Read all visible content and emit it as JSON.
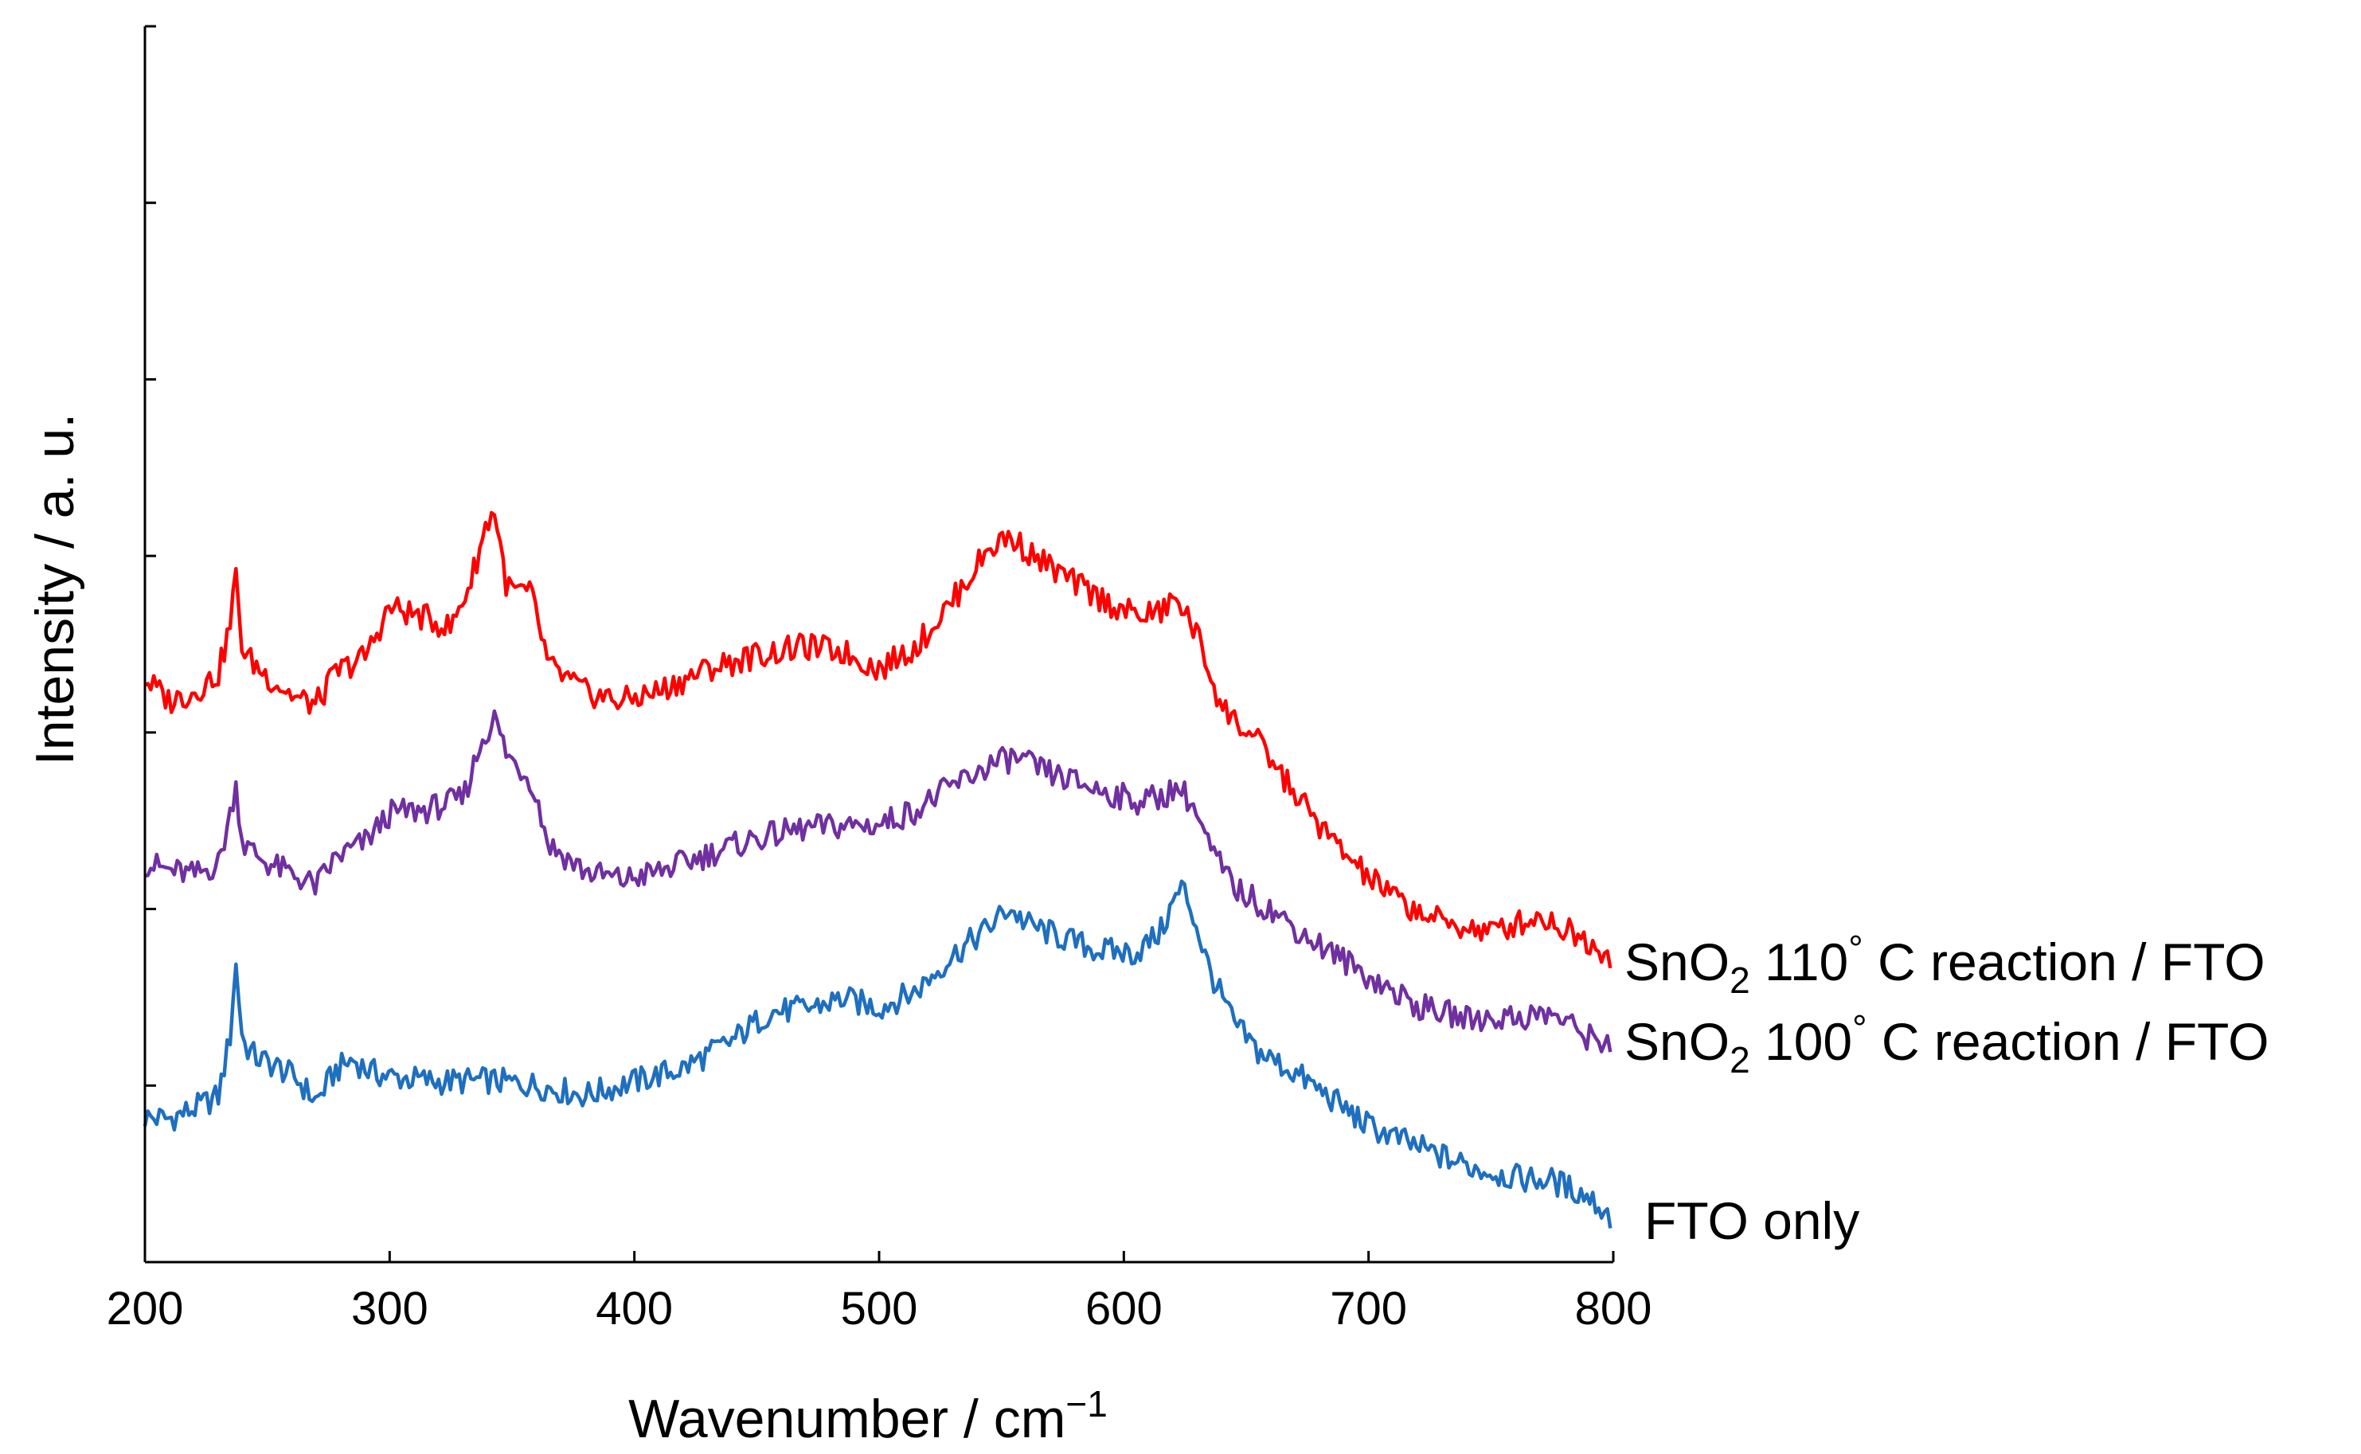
{
  "chart_data": {
    "type": "line",
    "title": "",
    "xlabel": "Wavenumber / cm",
    "xlabel_superscript": "−1",
    "ylabel": "Intensity / a. u.",
    "xlim": [
      200,
      800
    ],
    "ylim": [
      0,
      1
    ],
    "x_ticks": [
      200,
      300,
      400,
      500,
      600,
      700,
      800
    ],
    "y_tick_count": 7,
    "series": [
      {
        "name": "FTO only",
        "label_parts": {
          "main": "FTO only"
        },
        "color": "#1f6fbf",
        "points": [
          [
            200,
            0.117
          ],
          [
            210,
            0.116
          ],
          [
            220,
            0.124
          ],
          [
            230,
            0.134
          ],
          [
            235,
            0.185
          ],
          [
            237,
            0.244
          ],
          [
            240,
            0.178
          ],
          [
            245,
            0.166
          ],
          [
            255,
            0.157
          ],
          [
            262,
            0.148
          ],
          [
            270,
            0.13
          ],
          [
            278,
            0.155
          ],
          [
            285,
            0.164
          ],
          [
            292,
            0.154
          ],
          [
            300,
            0.15
          ],
          [
            320,
            0.146
          ],
          [
            340,
            0.147
          ],
          [
            360,
            0.143
          ],
          [
            380,
            0.135
          ],
          [
            400,
            0.146
          ],
          [
            420,
            0.157
          ],
          [
            440,
            0.179
          ],
          [
            455,
            0.202
          ],
          [
            470,
            0.205
          ],
          [
            485,
            0.213
          ],
          [
            500,
            0.206
          ],
          [
            515,
            0.219
          ],
          [
            530,
            0.248
          ],
          [
            545,
            0.271
          ],
          [
            553,
            0.287
          ],
          [
            560,
            0.274
          ],
          [
            575,
            0.262
          ],
          [
            590,
            0.252
          ],
          [
            605,
            0.25
          ],
          [
            615,
            0.267
          ],
          [
            620,
            0.29
          ],
          [
            624,
            0.304
          ],
          [
            628,
            0.283
          ],
          [
            635,
            0.236
          ],
          [
            645,
            0.193
          ],
          [
            655,
            0.17
          ],
          [
            670,
            0.153
          ],
          [
            685,
            0.132
          ],
          [
            700,
            0.11
          ],
          [
            720,
            0.093
          ],
          [
            740,
            0.078
          ],
          [
            760,
            0.068
          ],
          [
            775,
            0.066
          ],
          [
            790,
            0.053
          ],
          [
            800,
            0.034
          ]
        ]
      },
      {
        "name": "SnO2 100° C reaction / FTO",
        "label_parts": {
          "pre": "SnO",
          "sub": "2",
          "mid": " 100",
          "deg": "°",
          "post": " C reaction / FTO"
        },
        "color": "#7030a0",
        "points": [
          [
            200,
            0.323
          ],
          [
            210,
            0.317
          ],
          [
            220,
            0.313
          ],
          [
            230,
            0.322
          ],
          [
            235,
            0.363
          ],
          [
            237,
            0.389
          ],
          [
            240,
            0.338
          ],
          [
            250,
            0.323
          ],
          [
            262,
            0.312
          ],
          [
            270,
            0.304
          ],
          [
            278,
            0.327
          ],
          [
            290,
            0.34
          ],
          [
            300,
            0.363
          ],
          [
            315,
            0.366
          ],
          [
            330,
            0.375
          ],
          [
            338,
            0.424
          ],
          [
            343,
            0.44
          ],
          [
            348,
            0.41
          ],
          [
            358,
            0.39
          ],
          [
            365,
            0.338
          ],
          [
            380,
            0.316
          ],
          [
            395,
            0.309
          ],
          [
            410,
            0.316
          ],
          [
            430,
            0.33
          ],
          [
            450,
            0.343
          ],
          [
            470,
            0.351
          ],
          [
            485,
            0.353
          ],
          [
            500,
            0.354
          ],
          [
            515,
            0.366
          ],
          [
            530,
            0.385
          ],
          [
            545,
            0.402
          ],
          [
            555,
            0.408
          ],
          [
            570,
            0.395
          ],
          [
            590,
            0.382
          ],
          [
            605,
            0.373
          ],
          [
            615,
            0.376
          ],
          [
            622,
            0.385
          ],
          [
            628,
            0.371
          ],
          [
            635,
            0.335
          ],
          [
            645,
            0.303
          ],
          [
            660,
            0.285
          ],
          [
            675,
            0.263
          ],
          [
            690,
            0.244
          ],
          [
            705,
            0.225
          ],
          [
            720,
            0.207
          ],
          [
            740,
            0.197
          ],
          [
            760,
            0.198
          ],
          [
            775,
            0.201
          ],
          [
            790,
            0.182
          ],
          [
            800,
            0.177
          ]
        ]
      },
      {
        "name": "SnO2 110° C reaction / FTO",
        "label_parts": {
          "pre": "SnO",
          "sub": "2",
          "mid": " 110",
          "deg": "°",
          "post": " C reaction / FTO"
        },
        "color": "#ff0000",
        "points": [
          [
            200,
            0.472
          ],
          [
            210,
            0.454
          ],
          [
            220,
            0.461
          ],
          [
            230,
            0.476
          ],
          [
            235,
            0.517
          ],
          [
            237,
            0.558
          ],
          [
            240,
            0.493
          ],
          [
            250,
            0.474
          ],
          [
            262,
            0.456
          ],
          [
            270,
            0.451
          ],
          [
            278,
            0.477
          ],
          [
            290,
            0.49
          ],
          [
            300,
            0.53
          ],
          [
            315,
            0.521
          ],
          [
            325,
            0.513
          ],
          [
            333,
            0.55
          ],
          [
            340,
            0.6
          ],
          [
            343,
            0.608
          ],
          [
            348,
            0.545
          ],
          [
            358,
            0.54
          ],
          [
            365,
            0.482
          ],
          [
            380,
            0.461
          ],
          [
            395,
            0.454
          ],
          [
            410,
            0.462
          ],
          [
            430,
            0.48
          ],
          [
            450,
            0.491
          ],
          [
            470,
            0.498
          ],
          [
            485,
            0.494
          ],
          [
            500,
            0.48
          ],
          [
            515,
            0.498
          ],
          [
            530,
            0.535
          ],
          [
            545,
            0.578
          ],
          [
            553,
            0.587
          ],
          [
            565,
            0.569
          ],
          [
            580,
            0.549
          ],
          [
            595,
            0.532
          ],
          [
            605,
            0.523
          ],
          [
            615,
            0.526
          ],
          [
            622,
            0.537
          ],
          [
            630,
            0.507
          ],
          [
            640,
            0.449
          ],
          [
            655,
            0.42
          ],
          [
            670,
            0.379
          ],
          [
            685,
            0.341
          ],
          [
            700,
            0.311
          ],
          [
            715,
            0.289
          ],
          [
            730,
            0.275
          ],
          [
            750,
            0.267
          ],
          [
            770,
            0.28
          ],
          [
            785,
            0.265
          ],
          [
            800,
            0.247
          ]
        ]
      }
    ]
  }
}
